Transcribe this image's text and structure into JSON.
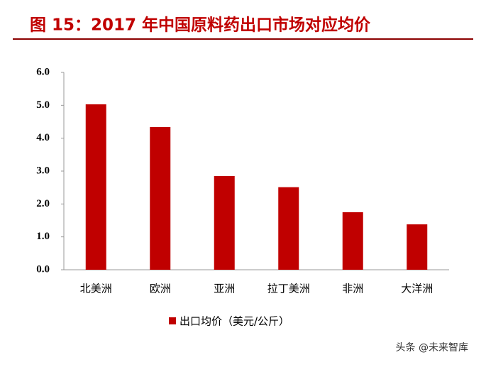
{
  "chart_data": {
    "type": "bar",
    "title": "图 15：2017 年中国原料药出口市场对应均价",
    "categories": [
      "北美洲",
      "欧洲",
      "亚洲",
      "拉丁美洲",
      "非洲",
      "大洋洲"
    ],
    "series": [
      {
        "name": "出口均价（美元/公斤）",
        "color": "#c00000",
        "values": [
          5.03,
          4.34,
          2.85,
          2.51,
          1.75,
          1.38
        ]
      }
    ],
    "ylim": [
      0,
      6
    ],
    "yticks": [
      {
        "value": 0,
        "label": "0.0"
      },
      {
        "value": 1,
        "label": "1.0"
      },
      {
        "value": 2,
        "label": "2.0"
      },
      {
        "value": 3,
        "label": "3.0"
      },
      {
        "value": 4,
        "label": "4.0"
      },
      {
        "value": 5,
        "label": "5.0"
      },
      {
        "value": 6,
        "label": "6.0"
      }
    ],
    "grid": false,
    "legend": "bottom",
    "watermark": "头条 @未来智库"
  }
}
